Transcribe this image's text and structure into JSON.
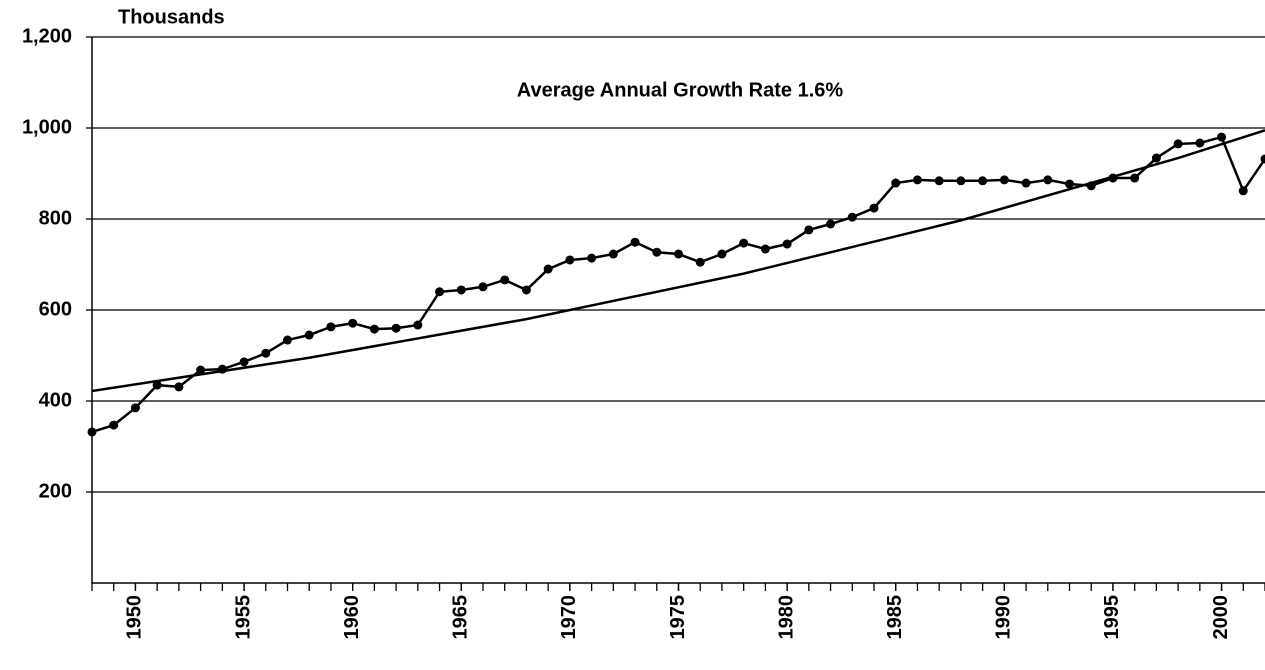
{
  "chart_data": {
    "type": "line",
    "y_axis_label": "Thousands",
    "annotation": "Average Annual Growth Rate  1.6%",
    "x": [
      1948,
      1949,
      1950,
      1951,
      1952,
      1953,
      1954,
      1955,
      1956,
      1957,
      1958,
      1959,
      1960,
      1961,
      1962,
      1963,
      1964,
      1965,
      1966,
      1967,
      1968,
      1969,
      1970,
      1971,
      1972,
      1973,
      1974,
      1975,
      1976,
      1977,
      1978,
      1979,
      1980,
      1981,
      1982,
      1983,
      1984,
      1985,
      1986,
      1987,
      1988,
      1989,
      1990,
      1991,
      1992,
      1993,
      1994,
      1995,
      1996,
      1997,
      1998,
      1999,
      2000,
      2001,
      2002
    ],
    "series": [
      {
        "color": "#000000",
        "markers": true,
        "values": [
          332,
          347,
          385,
          435,
          431,
          468,
          470,
          486,
          505,
          534,
          545,
          563,
          571,
          558,
          560,
          567,
          640,
          644,
          651,
          666,
          644,
          690,
          710,
          714,
          723,
          749,
          727,
          723,
          705,
          723,
          747,
          734,
          745,
          776,
          789,
          804,
          824,
          879,
          886,
          884,
          884,
          884,
          886,
          879,
          886,
          877,
          873,
          890,
          890,
          934,
          965,
          967,
          980,
          862,
          932
        ]
      },
      {
        "color": "#000000",
        "markers": false,
        "x": [
          1948,
          1958,
          1968,
          1978,
          1988,
          1998,
          2002
        ],
        "values": [
          422,
          495,
          580,
          680,
          797,
          934,
          995
        ]
      }
    ],
    "xlim": [
      1948,
      2002
    ],
    "xticks": [
      1950,
      1955,
      1960,
      1965,
      1970,
      1975,
      1980,
      1985,
      1990,
      1995,
      2000
    ],
    "ylim": [
      0,
      1200
    ],
    "yticks": [
      200,
      400,
      600,
      800,
      {
        "value": 1000,
        "label": "1,000"
      },
      {
        "value": 1200,
        "label": "1,200"
      }
    ],
    "grid": true
  }
}
